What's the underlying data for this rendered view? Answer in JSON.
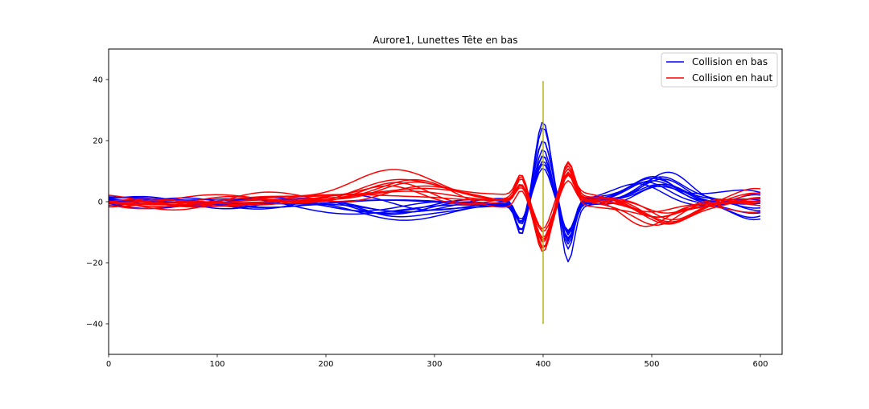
{
  "chart_data": {
    "type": "line",
    "title": "Aurore1, Lunettes Tête en bas",
    "xlabel": "",
    "ylabel": "",
    "xlim": [
      0,
      620
    ],
    "ylim": [
      -50,
      50
    ],
    "xticks": [
      0,
      100,
      200,
      300,
      400,
      500,
      600
    ],
    "yticks": [
      -40,
      -20,
      0,
      20,
      40
    ],
    "legend_position": "top-right",
    "grid": false,
    "vertical_marker": {
      "x": 400,
      "y_from": -40,
      "y_to": 39.5,
      "color": "#b5b51a"
    },
    "series": [
      {
        "name": "Collision en bas",
        "color": "#0000ff",
        "shape": 1,
        "instances": [
          {
            "amp": 26.5,
            "off": -3.0,
            "lead": 6.0,
            "tail": -4.0,
            "seed": 1
          },
          {
            "amp": 24.0,
            "off": -2.0,
            "lead": 7.0,
            "tail": -3.0,
            "seed": 2
          },
          {
            "amp": 20.0,
            "off": -4.0,
            "lead": 8.0,
            "tail": 3.0,
            "seed": 3
          },
          {
            "amp": 18.5,
            "off": -1.5,
            "lead": 5.0,
            "tail": 2.0,
            "seed": 4
          },
          {
            "amp": 18.0,
            "off": -5.0,
            "lead": 6.5,
            "tail": -2.0,
            "seed": 5
          },
          {
            "amp": 17.0,
            "off": -3.5,
            "lead": 4.0,
            "tail": 1.0,
            "seed": 6
          },
          {
            "amp": 16.0,
            "off": -2.5,
            "lead": 9.5,
            "tail": -1.0,
            "seed": 7
          },
          {
            "amp": 15.0,
            "off": -6.0,
            "lead": 5.5,
            "tail": 0.5,
            "seed": 8
          },
          {
            "amp": 14.0,
            "off": -1.0,
            "lead": 7.5,
            "tail": -2.5,
            "seed": 9
          },
          {
            "amp": 13.0,
            "off": -4.5,
            "lead": 6.0,
            "tail": 1.5,
            "seed": 10
          },
          {
            "amp": 12.0,
            "off": -2.0,
            "lead": 5.0,
            "tail": -3.5,
            "seed": 11
          }
        ]
      },
      {
        "name": "Collision en haut",
        "color": "#ff0000",
        "shape": -1,
        "instances": [
          {
            "amp": 17.0,
            "off": 11.5,
            "lead": -5.0,
            "tail": 3.0,
            "seed": 21
          },
          {
            "amp": 16.5,
            "off": 6.0,
            "lead": -6.0,
            "tail": 2.0,
            "seed": 22
          },
          {
            "amp": 16.0,
            "off": 8.0,
            "lead": -4.0,
            "tail": -1.0,
            "seed": 23
          },
          {
            "amp": 15.0,
            "off": 6.5,
            "lead": -7.0,
            "tail": 1.0,
            "seed": 24
          },
          {
            "amp": 14.0,
            "off": 5.0,
            "lead": -5.5,
            "tail": 2.5,
            "seed": 25
          },
          {
            "amp": 13.0,
            "off": 7.0,
            "lead": -3.5,
            "tail": -0.5,
            "seed": 26
          },
          {
            "amp": 12.5,
            "off": 4.0,
            "lead": -8.0,
            "tail": 1.5,
            "seed": 27
          },
          {
            "amp": 12.0,
            "off": 6.0,
            "lead": -6.5,
            "tail": 0.0,
            "seed": 28
          },
          {
            "amp": 11.0,
            "off": 5.5,
            "lead": -4.5,
            "tail": 2.0,
            "seed": 29
          },
          {
            "amp": 10.0,
            "off": 3.0,
            "lead": -5.0,
            "tail": -1.5,
            "seed": 30
          }
        ]
      }
    ]
  }
}
